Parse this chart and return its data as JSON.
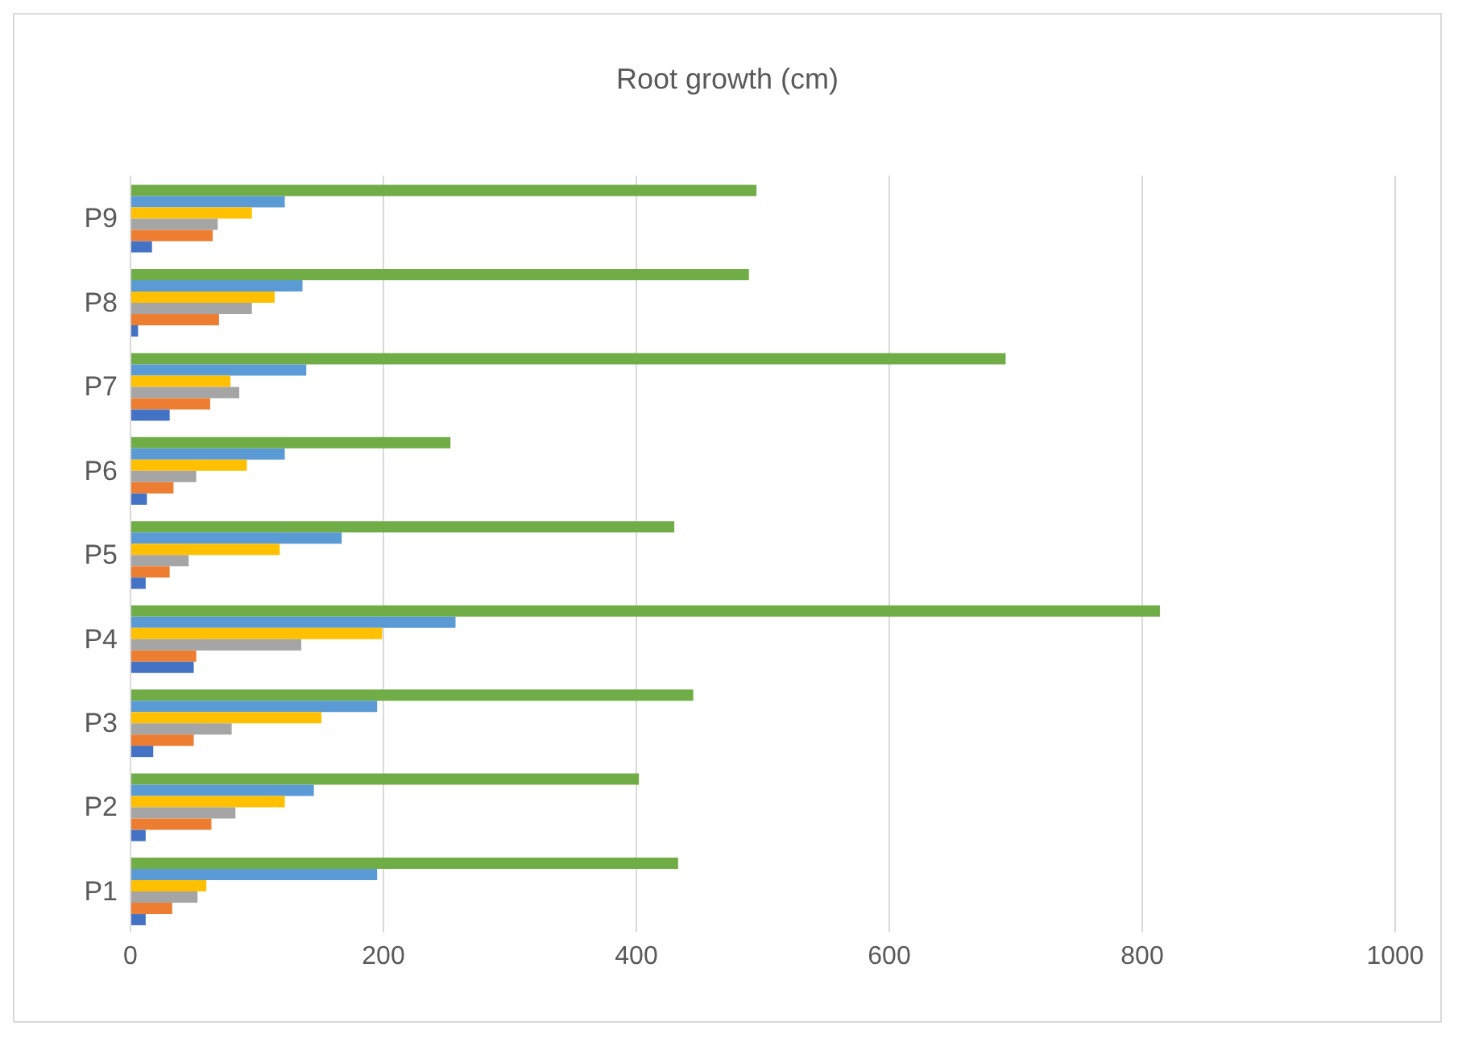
{
  "chart_data": {
    "type": "bar",
    "orientation": "horizontal",
    "title": "Root growth (cm)",
    "categories": [
      "P9",
      "P8",
      "P7",
      "P6",
      "P5",
      "P4",
      "P3",
      "P2",
      "P1"
    ],
    "series": [
      {
        "color": "#70ad47",
        "values": [
          495,
          489,
          692,
          253,
          430,
          814,
          445,
          402,
          433
        ]
      },
      {
        "color": "#5b9bd5",
        "values": [
          122,
          136,
          139,
          122,
          167,
          257,
          195,
          145,
          195
        ]
      },
      {
        "color": "#ffc000",
        "values": [
          96,
          114,
          79,
          92,
          118,
          199,
          151,
          122,
          60
        ]
      },
      {
        "color": "#a5a5a5",
        "values": [
          69,
          96,
          86,
          52,
          46,
          135,
          80,
          83,
          53
        ]
      },
      {
        "color": "#ed7d31",
        "values": [
          65,
          70,
          63,
          34,
          31,
          52,
          50,
          64,
          33
        ]
      },
      {
        "color": "#4472c4",
        "values": [
          17,
          6,
          31,
          13,
          12,
          50,
          18,
          12,
          12
        ]
      }
    ],
    "xlim": [
      0,
      1000
    ],
    "xticks": [
      0,
      200,
      400,
      600,
      800,
      1000
    ],
    "grid": "x"
  }
}
